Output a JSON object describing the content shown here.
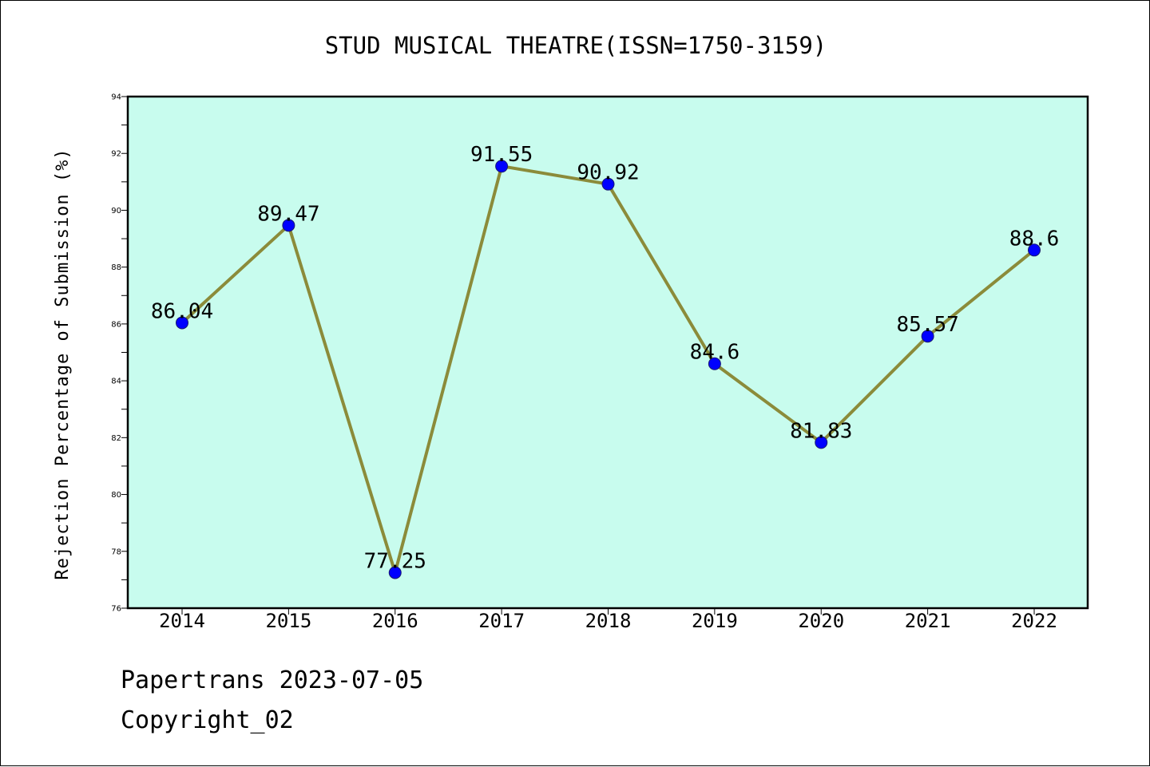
{
  "chart_data": {
    "type": "line",
    "title": "STUD MUSICAL THEATRE(ISSN=1750-3159)",
    "ylabel": "Rejection Percentage of Submission (%)",
    "xlabel": "",
    "categories": [
      "2014",
      "2015",
      "2016",
      "2017",
      "2018",
      "2019",
      "2020",
      "2021",
      "2022"
    ],
    "values": [
      86.04,
      89.47,
      77.25,
      91.55,
      90.92,
      84.6,
      81.83,
      85.57,
      88.6
    ],
    "data_labels": [
      "86.04",
      "89.47",
      "77.25",
      "91.55",
      "90.92",
      "84.6",
      "81.83",
      "85.57",
      "88.6"
    ],
    "ylim": [
      76,
      94
    ],
    "yticks": [
      76,
      78,
      80,
      82,
      84,
      86,
      88,
      90,
      92,
      94
    ],
    "grid": false,
    "colors": {
      "plot_background": "#c8fcee",
      "line": "#8b8b3a",
      "marker": "#0000ff"
    }
  },
  "footer": {
    "line1": "Papertrans 2023-07-05",
    "line2": "Copyright_02"
  }
}
